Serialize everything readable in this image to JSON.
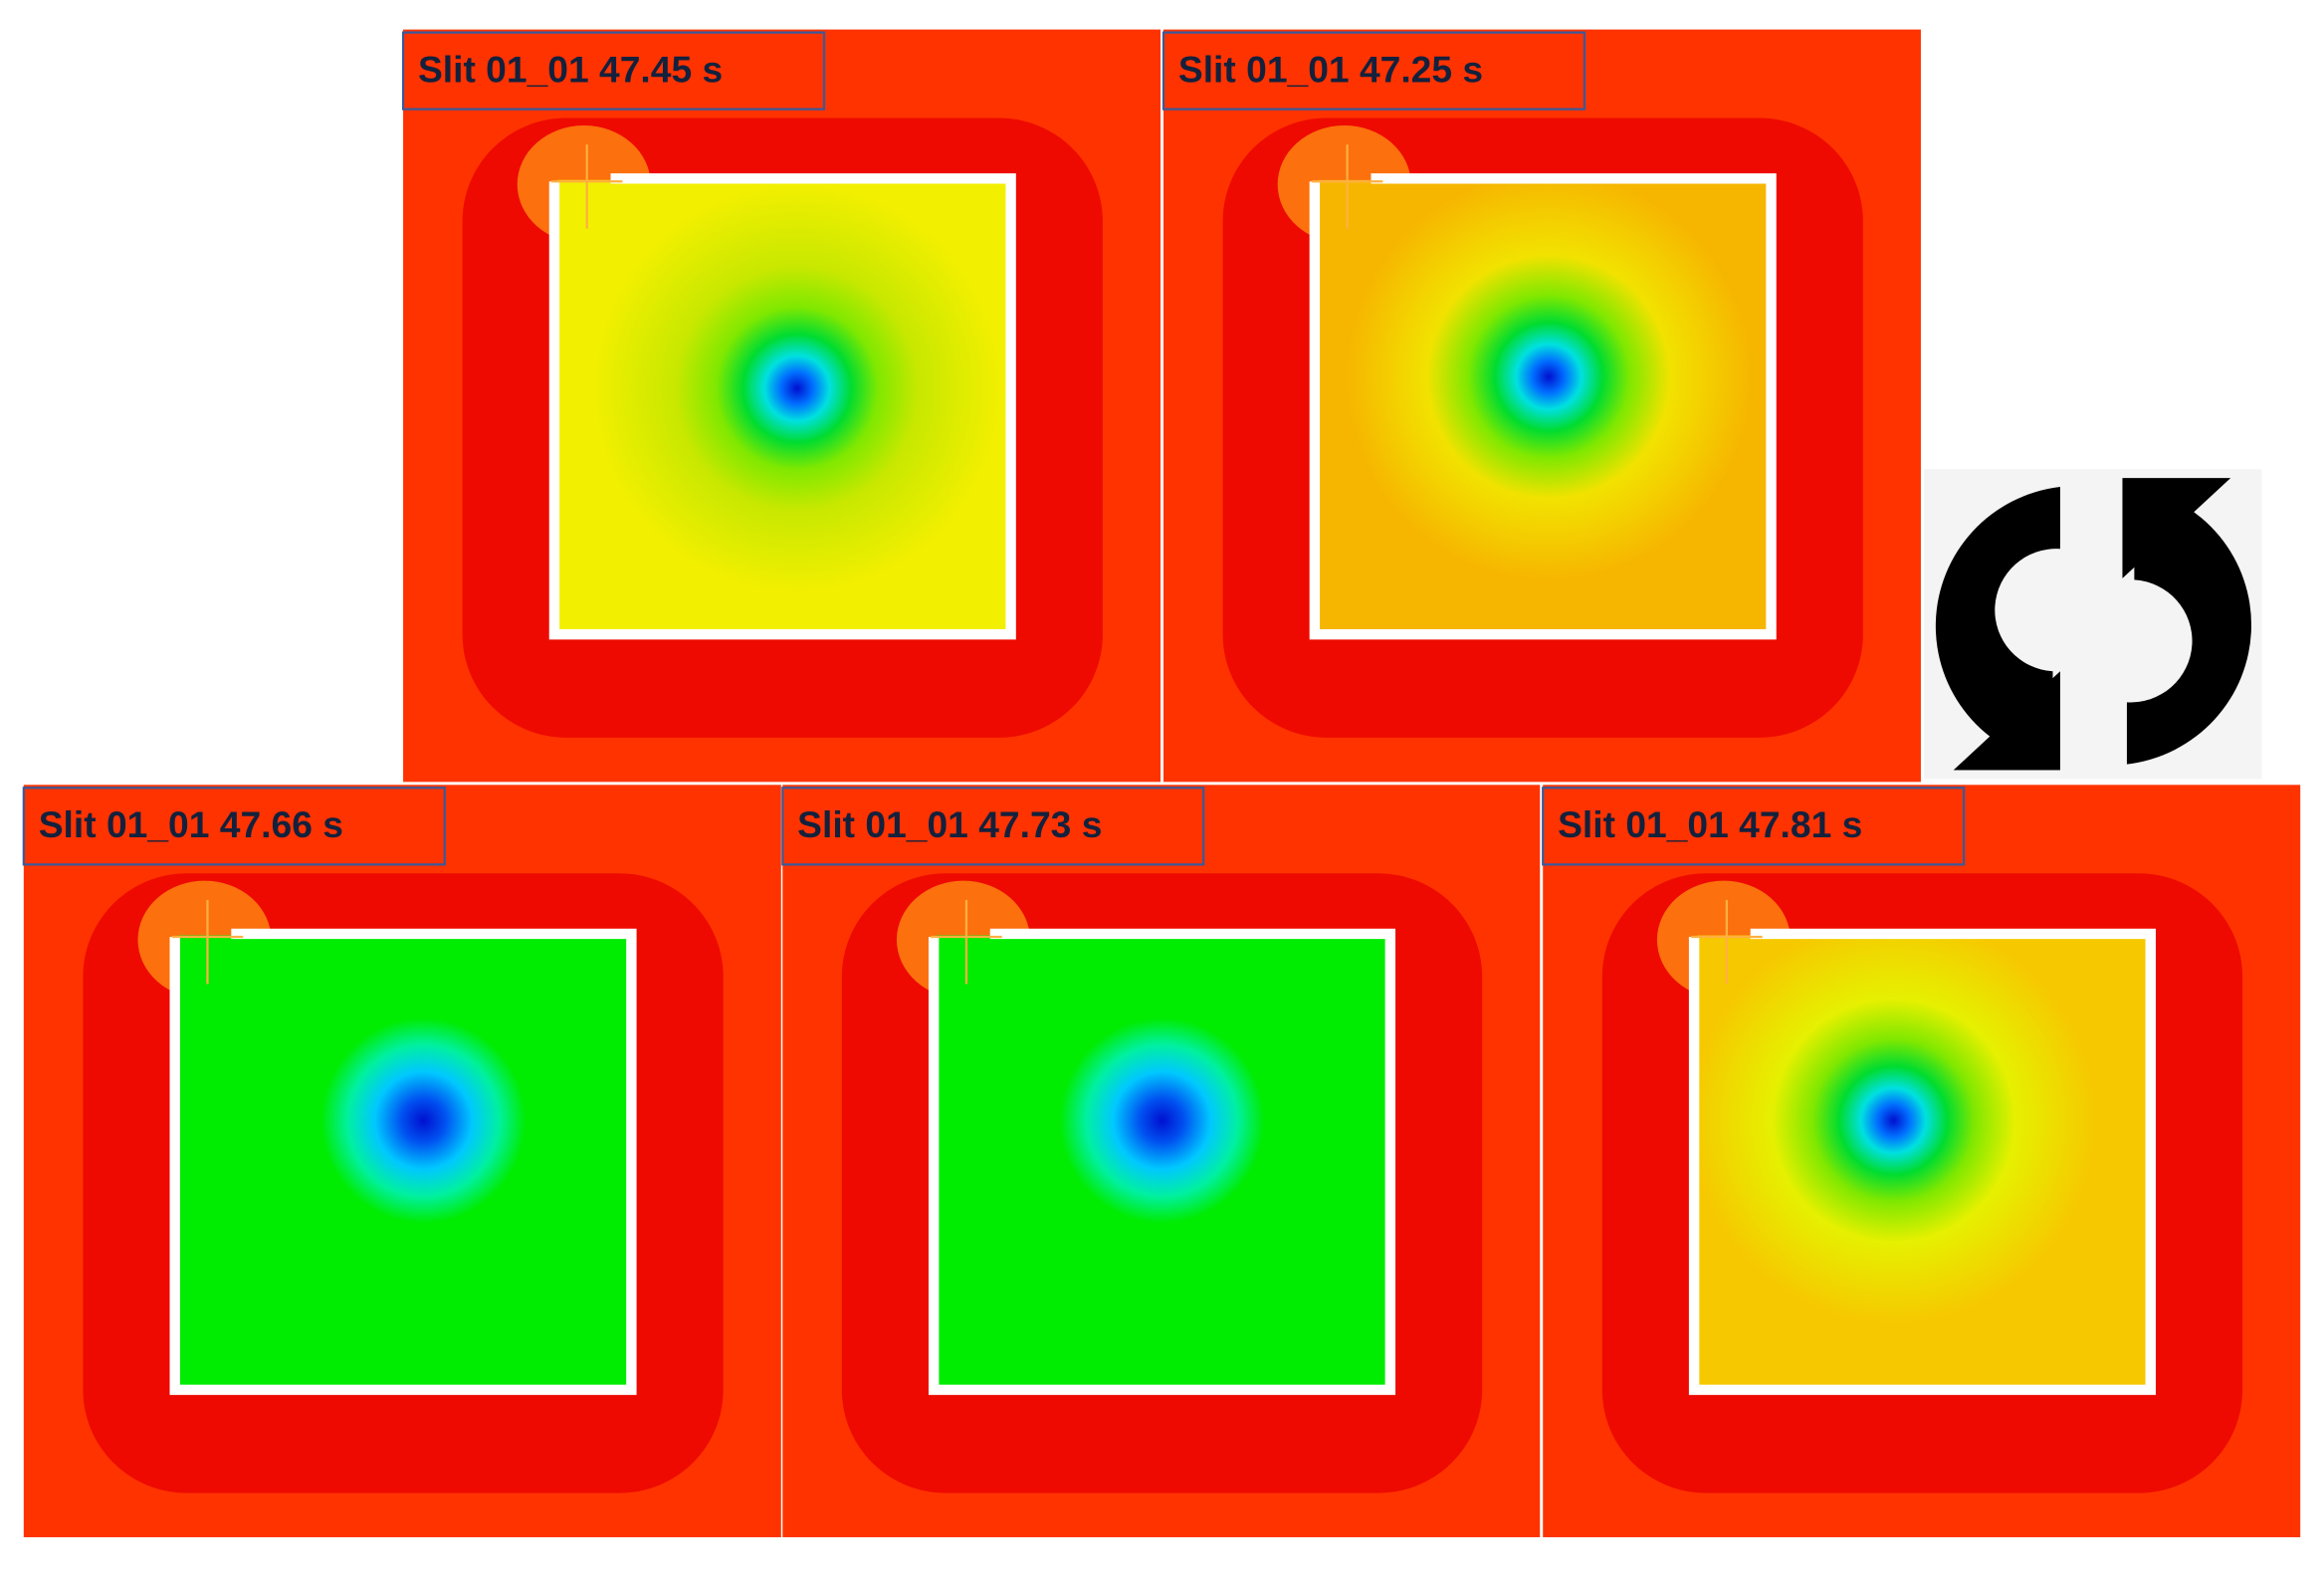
{
  "panels": [
    {
      "label": "Slit 01_01 47.45 s"
    },
    {
      "label": "Slit 01_01 47.25 s"
    },
    {
      "label": "Slit 01_01 47.66 s"
    },
    {
      "label": "Slit 01_01 47.73 s"
    },
    {
      "label": "Slit 01_01 47.81 s"
    }
  ]
}
